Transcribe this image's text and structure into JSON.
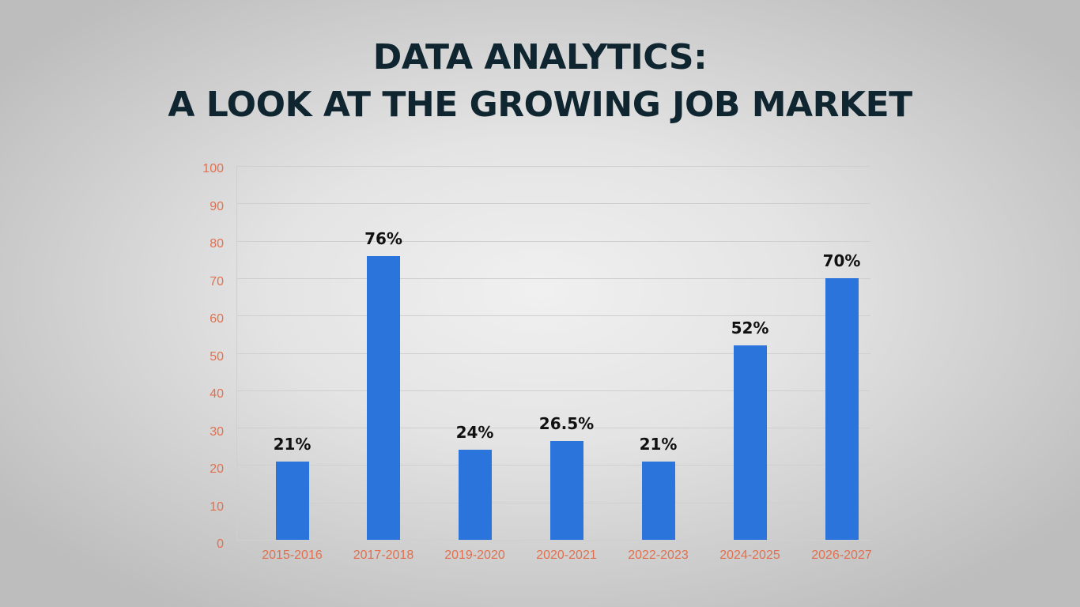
{
  "title": {
    "line1": "DATA ANALYTICS:",
    "line2": "A LOOK AT THE GROWING JOB MARKET"
  },
  "colors": {
    "bar": "#2b74dc",
    "tick_labels": "#e0704f",
    "title": "#0f2530",
    "value_labels": "#111111"
  },
  "chart_data": {
    "type": "bar",
    "title": "DATA ANALYTICS: A LOOK AT THE GROWING JOB MARKET",
    "xlabel": "",
    "ylabel": "",
    "ylim": [
      0,
      100
    ],
    "yticks": [
      "0",
      "10",
      "20",
      "30",
      "40",
      "50",
      "60",
      "70",
      "80",
      "90",
      "100"
    ],
    "grid": true,
    "legend": null,
    "categories": [
      "2015-2016",
      "2017-2018",
      "2019-2020",
      "2020-2021",
      "2022-2023",
      "2024-2025",
      "2026-2027"
    ],
    "values": [
      21,
      76,
      24,
      26.5,
      21,
      52,
      70
    ],
    "data_labels": [
      "21%",
      "76%",
      "24%",
      "26.5%",
      "21%",
      "52%",
      "70%"
    ]
  }
}
